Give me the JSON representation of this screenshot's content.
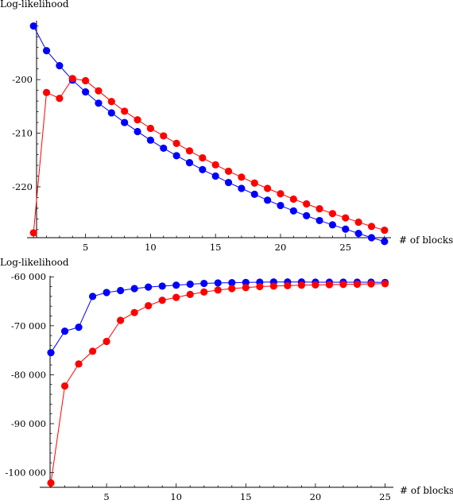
{
  "chart_data": [
    {
      "type": "line",
      "ylabel": "Log-likelihood",
      "xlabel": "# of blocks",
      "xlim": [
        0.5,
        28.5
      ],
      "ylim": [
        -229.5,
        -189
      ],
      "x_ticks": [
        5,
        10,
        15,
        20,
        25
      ],
      "y_ticks": [
        -220,
        -210,
        -200
      ],
      "x_tick_labels": [
        "5",
        "10",
        "15",
        "20",
        "25"
      ],
      "y_tick_labels": [
        "-220",
        "-210",
        "-200"
      ],
      "x": [
        1,
        2,
        3,
        4,
        5,
        6,
        7,
        8,
        9,
        10,
        11,
        12,
        13,
        14,
        15,
        16,
        17,
        18,
        19,
        20,
        21,
        22,
        23,
        24,
        25,
        26,
        27,
        28
      ],
      "series": [
        {
          "color": "#0000ff",
          "values": [
            -190.0,
            -194.6,
            -197.4,
            -200.1,
            -202.3,
            -204.4,
            -206.2,
            -208.0,
            -209.7,
            -211.3,
            -212.8,
            -214.2,
            -215.5,
            -216.8,
            -218.0,
            -219.2,
            -220.3,
            -221.4,
            -222.5,
            -223.5,
            -224.5,
            -225.4,
            -226.3,
            -227.1,
            -227.9,
            -228.7,
            -229.5,
            -230.2
          ]
        },
        {
          "color": "#ff0000",
          "values": [
            -228.6,
            -202.4,
            -203.5,
            -199.8,
            -200.2,
            -202.1,
            -204.1,
            -205.9,
            -207.5,
            -209.1,
            -210.5,
            -211.9,
            -213.3,
            -214.6,
            -215.9,
            -217.1,
            -218.2,
            -219.3,
            -220.3,
            -221.3,
            -222.3,
            -223.2,
            -224.1,
            -225.0,
            -225.8,
            -226.6,
            -227.4,
            -228.1
          ]
        }
      ]
    },
    {
      "type": "line",
      "ylabel": "Log-likelihood",
      "xlabel": "# of blocks",
      "xlim": [
        0.2,
        25.6
      ],
      "ylim": [
        -103000,
        -59800
      ],
      "x_ticks": [
        5,
        10,
        15,
        20,
        25
      ],
      "y_ticks": [
        -100000,
        -90000,
        -80000,
        -70000,
        -60000
      ],
      "x_tick_labels": [
        "5",
        "10",
        "15",
        "20",
        "25"
      ],
      "y_tick_labels": [
        "-100 000",
        "-90 000",
        "-80 000",
        "-70 000",
        "-60 000"
      ],
      "x": [
        1,
        2,
        3,
        4,
        5,
        6,
        7,
        8,
        9,
        10,
        11,
        12,
        13,
        14,
        15,
        16,
        17,
        18,
        19,
        20,
        21,
        22,
        23,
        24,
        25
      ],
      "series": [
        {
          "color": "#0000ff",
          "values": [
            -75500,
            -71100,
            -70300,
            -64000,
            -63200,
            -62800,
            -62400,
            -62100,
            -61900,
            -61700,
            -61500,
            -61350,
            -61250,
            -61200,
            -61150,
            -61100,
            -61050,
            -61050,
            -61050,
            -61100,
            -61100,
            -61100,
            -61100,
            -61100,
            -61150
          ]
        },
        {
          "color": "#ff0000",
          "values": [
            -102100,
            -82300,
            -77800,
            -75200,
            -73200,
            -68900,
            -67300,
            -65900,
            -64800,
            -64200,
            -63600,
            -63100,
            -62700,
            -62400,
            -62200,
            -62000,
            -61900,
            -61800,
            -61700,
            -61650,
            -61600,
            -61550,
            -61500,
            -61450,
            -61400
          ]
        }
      ]
    }
  ]
}
